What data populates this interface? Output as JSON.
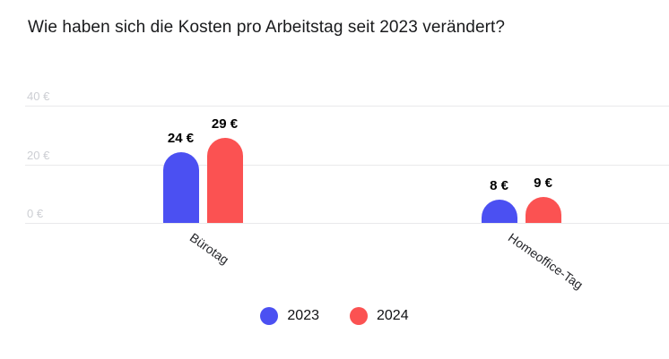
{
  "title": "Wie haben sich die Kosten pro Arbeitstag seit 2023 verändert?",
  "colors": {
    "series_2023": "#4b50f2",
    "series_2024": "#fb5252",
    "grid": "#e9e9eb",
    "axis_tick_text": "#ccced3",
    "title_text": "#191a1c",
    "category_text": "#26272b",
    "value_label_text": "#000000"
  },
  "chart_data": {
    "type": "bar",
    "title": "Wie haben sich die Kosten pro Arbeitstag seit 2023 verändert?",
    "categories": [
      "Bürotag",
      "Homeoffice-Tag"
    ],
    "series": [
      {
        "name": "2023",
        "color_key": "series_2023",
        "values": [
          24,
          8
        ],
        "labels": [
          "24 €",
          "8 €"
        ]
      },
      {
        "name": "2024",
        "color_key": "series_2024",
        "values": [
          29,
          9
        ],
        "labels": [
          "29 €",
          "9 €"
        ]
      }
    ],
    "unit": "€",
    "xlabel": "",
    "ylabel": "",
    "ylim": [
      0,
      40
    ],
    "yticks": [
      {
        "value": 0,
        "label": "0 €"
      },
      {
        "value": 20,
        "label": "20 €"
      },
      {
        "value": 40,
        "label": "40 €"
      }
    ],
    "grid": "horizontal",
    "legend_position": "bottom-center",
    "legend": [
      {
        "label": "2023",
        "color_key": "series_2023"
      },
      {
        "label": "2024",
        "color_key": "series_2024"
      }
    ]
  }
}
